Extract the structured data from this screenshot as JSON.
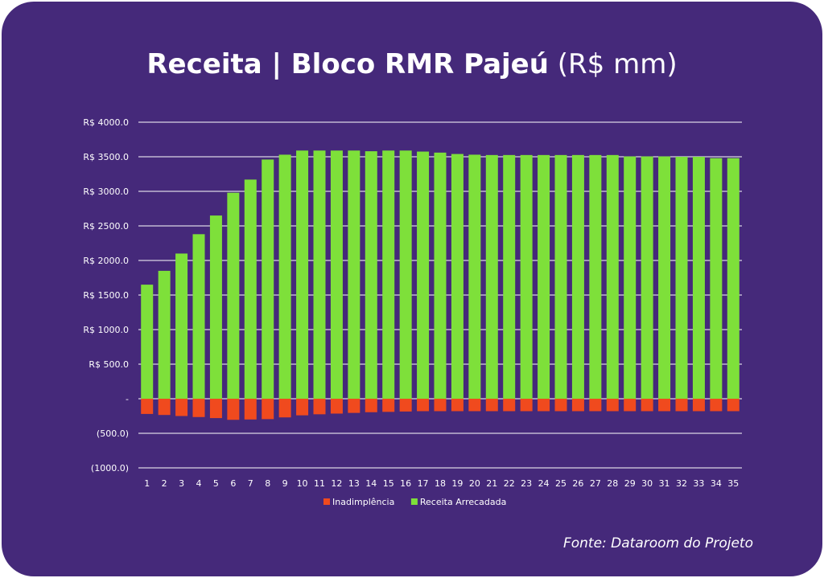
{
  "title_main": "Receita | Bloco RMR Pajeú",
  "title_unit": "(R$ mm)",
  "source": "Fonte: Dataroom do Projeto",
  "colors": {
    "background": "#45297a",
    "receita": "#7ee03a",
    "inadimplencia": "#f04a1e",
    "grid": "#ffffff"
  },
  "chart_data": {
    "type": "bar",
    "stacked": true,
    "title": "Receita | Bloco RMR Pajeú (R$ mm)",
    "xlabel": "",
    "ylabel": "",
    "ylim": [
      -1000,
      4000
    ],
    "grid": true,
    "legend_position": "bottom",
    "categories": [
      "1",
      "2",
      "3",
      "4",
      "5",
      "6",
      "7",
      "8",
      "9",
      "10",
      "11",
      "12",
      "13",
      "14",
      "15",
      "16",
      "17",
      "18",
      "19",
      "20",
      "21",
      "22",
      "23",
      "24",
      "25",
      "26",
      "27",
      "28",
      "29",
      "30",
      "31",
      "32",
      "33",
      "34",
      "35"
    ],
    "y_ticks": [
      {
        "value": 4000,
        "label": "R$ 4000.0"
      },
      {
        "value": 3500,
        "label": "R$ 3500.0"
      },
      {
        "value": 3000,
        "label": "R$ 3000.0"
      },
      {
        "value": 2500,
        "label": "R$ 2500.0"
      },
      {
        "value": 2000,
        "label": "R$ 2000.0"
      },
      {
        "value": 1500,
        "label": "R$ 1500.0"
      },
      {
        "value": 1000,
        "label": "R$ 1000.0"
      },
      {
        "value": 500,
        "label": "R$ 500.0"
      },
      {
        "value": 0,
        "label": "-"
      },
      {
        "value": -500,
        "label": "(500.0)"
      },
      {
        "value": -1000,
        "label": "(1000.0)"
      }
    ],
    "series": [
      {
        "name": "Inadimplência",
        "color": "#f04a1e",
        "values": [
          -220,
          -235,
          -250,
          -265,
          -280,
          -305,
          -300,
          -295,
          -270,
          -240,
          -225,
          -215,
          -205,
          -195,
          -190,
          -185,
          -180,
          -180,
          -180,
          -180,
          -180,
          -180,
          -180,
          -180,
          -180,
          -180,
          -180,
          -180,
          -180,
          -180,
          -180,
          -180,
          -180,
          -180,
          -180
        ]
      },
      {
        "name": "Receita Arrecadada",
        "color": "#7ee03a",
        "values": [
          1650,
          1850,
          2100,
          2380,
          2650,
          2980,
          3170,
          3460,
          3530,
          3590,
          3590,
          3590,
          3590,
          3580,
          3590,
          3590,
          3575,
          3560,
          3540,
          3530,
          3525,
          3525,
          3525,
          3525,
          3525,
          3525,
          3525,
          3525,
          3505,
          3505,
          3505,
          3500,
          3500,
          3480,
          3480
        ]
      }
    ]
  }
}
